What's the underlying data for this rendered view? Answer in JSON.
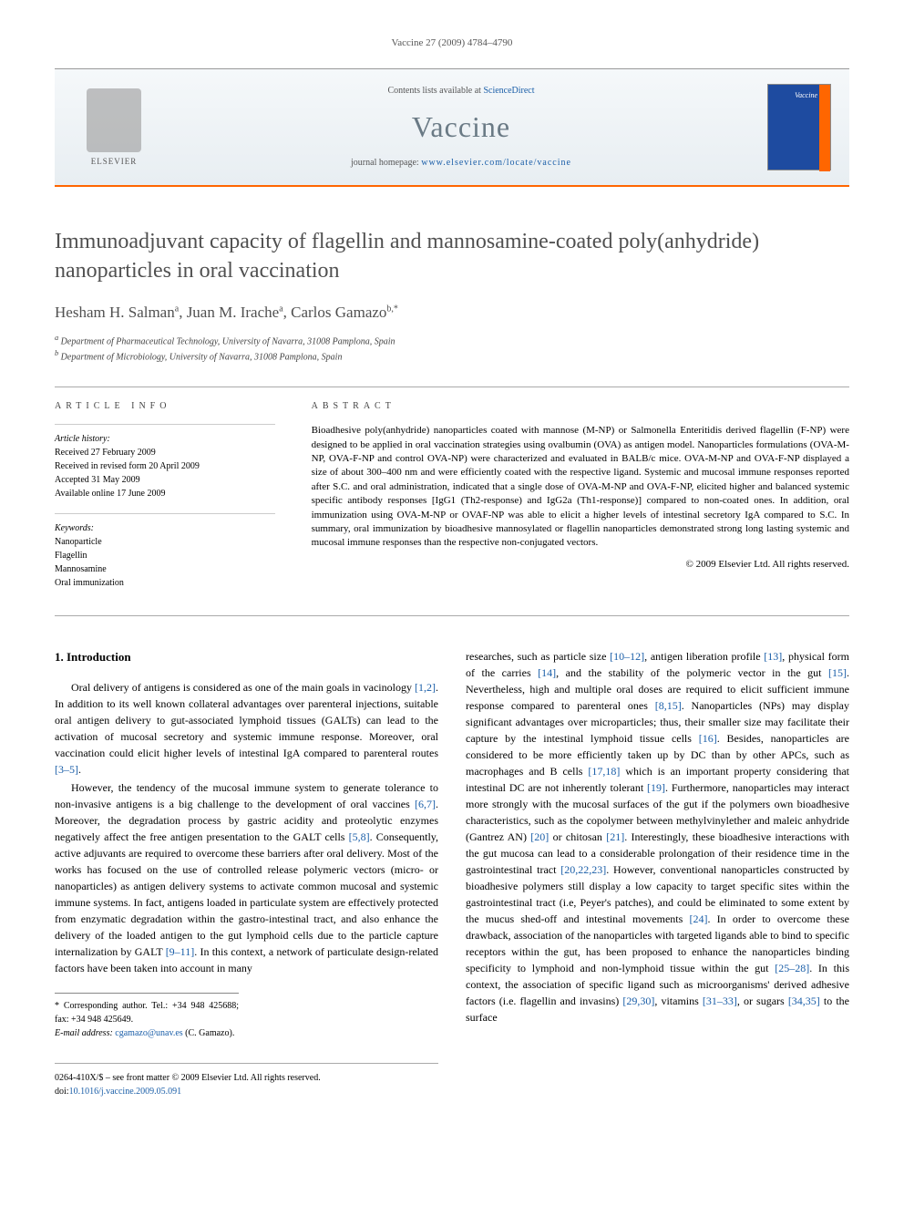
{
  "running_head": "Vaccine 27 (2009) 4784–4790",
  "header": {
    "contents_prefix": "Contents lists available at ",
    "contents_link": "ScienceDirect",
    "journal": "Vaccine",
    "homepage_prefix": "journal homepage: ",
    "homepage_url": "www.elsevier.com/locate/vaccine",
    "publisher": "ELSEVIER",
    "cover_label": "Vaccine"
  },
  "title": "Immunoadjuvant capacity of flagellin and mannosamine-coated poly(anhydride) nanoparticles in oral vaccination",
  "authors_html": "Hesham H. Salman<sup>a</sup>, Juan M. Irache<sup>a</sup>, Carlos Gamazo<sup>b,*</sup>",
  "affiliations": {
    "a": "Department of Pharmaceutical Technology, University of Navarra, 31008 Pamplona, Spain",
    "b": "Department of Microbiology, University of Navarra, 31008 Pamplona, Spain"
  },
  "info": {
    "label": "article info",
    "history_title": "Article history:",
    "history": [
      "Received 27 February 2009",
      "Received in revised form 20 April 2009",
      "Accepted 31 May 2009",
      "Available online 17 June 2009"
    ],
    "keywords_title": "Keywords:",
    "keywords": [
      "Nanoparticle",
      "Flagellin",
      "Mannosamine",
      "Oral immunization"
    ]
  },
  "abstract": {
    "label": "abstract",
    "text": "Bioadhesive poly(anhydride) nanoparticles coated with mannose (M-NP) or Salmonella Enteritidis derived flagellin (F-NP) were designed to be applied in oral vaccination strategies using ovalbumin (OVA) as antigen model. Nanoparticles formulations (OVA-M-NP, OVA-F-NP and control OVA-NP) were characterized and evaluated in BALB/c mice. OVA-M-NP and OVA-F-NP displayed a size of about 300–400 nm and were efficiently coated with the respective ligand. Systemic and mucosal immune responses reported after S.C. and oral administration, indicated that a single dose of OVA-M-NP and OVA-F-NP, elicited higher and balanced systemic specific antibody responses [IgG1 (Th2-response) and IgG2a (Th1-response)] compared to non-coated ones. In addition, oral immunization using OVA-M-NP or OVAF-NP was able to elicit a higher levels of intestinal secretory IgA compared to S.C. In summary, oral immunization by bioadhesive mannosylated or flagellin nanoparticles demonstrated strong long lasting systemic and mucosal immune responses than the respective non-conjugated vectors.",
    "copyright": "© 2009 Elsevier Ltd. All rights reserved."
  },
  "body": {
    "section_heading": "1. Introduction",
    "left_p1": "Oral delivery of antigens is considered as one of the main goals in vacinology [1,2]. In addition to its well known collateral advantages over parenteral injections, suitable oral antigen delivery to gut-associated lymphoid tissues (GALTs) can lead to the activation of mucosal secretory and systemic immune response. Moreover, oral vaccination could elicit higher levels of intestinal IgA compared to parenteral routes [3–5].",
    "left_p2": "However, the tendency of the mucosal immune system to generate tolerance to non-invasive antigens is a big challenge to the development of oral vaccines [6,7]. Moreover, the degradation process by gastric acidity and proteolytic enzymes negatively affect the free antigen presentation to the GALT cells [5,8]. Consequently, active adjuvants are required to overcome these barriers after oral delivery. Most of the works has focused on the use of controlled release polymeric vectors (micro- or nanoparticles) as antigen delivery systems to activate common mucosal and systemic immune systems. In fact, antigens loaded in particulate system are effectively protected from enzymatic degradation within the gastro-intestinal tract, and also enhance the delivery of the loaded antigen to the gut lymphoid cells due to the particle capture internalization by GALT [9–11]. In this context, a network of particulate design-related factors have been taken into account in many",
    "right_p1": "researches, such as particle size [10–12], antigen liberation profile [13], physical form of the carries [14], and the stability of the polymeric vector in the gut [15]. Nevertheless, high and multiple oral doses are required to elicit sufficient immune response compared to parenteral ones [8,15]. Nanoparticles (NPs) may display significant advantages over microparticles; thus, their smaller size may facilitate their capture by the intestinal lymphoid tissue cells [16]. Besides, nanoparticles are considered to be more efficiently taken up by DC than by other APCs, such as macrophages and B cells [17,18] which is an important property considering that intestinal DC are not inherently tolerant [19]. Furthermore, nanoparticles may interact more strongly with the mucosal surfaces of the gut if the polymers own bioadhesive characteristics, such as the copolymer between methylvinylether and maleic anhydride (Gantrez AN) [20] or chitosan [21]. Interestingly, these bioadhesive interactions with the gut mucosa can lead to a considerable prolongation of their residence time in the gastrointestinal tract [20,22,23]. However, conventional nanoparticles constructed by bioadhesive polymers still display a low capacity to target specific sites within the gastrointestinal tract (i.e, Peyer's patches), and could be eliminated to some extent by the mucus shed-off and intestinal movements [24]. In order to overcome these drawback, association of the nanoparticles with targeted ligands able to bind to specific receptors within the gut, has been proposed to enhance the nanoparticles binding specificity to lymphoid and non-lymphoid tissue within the gut [25–28]. In this context, the association of specific ligand such as microorganisms' derived adhesive factors (i.e. flagellin and invasins) [29,30], vitamins [31–33], or sugars [34,35] to the surface"
  },
  "footnote": {
    "corr": "* Corresponding author. Tel.: +34 948 425688; fax: +34 948 425649.",
    "email_label": "E-mail address: ",
    "email": "cgamazo@unav.es",
    "email_suffix": " (C. Gamazo)."
  },
  "footer": {
    "line1": "0264-410X/$ – see front matter © 2009 Elsevier Ltd. All rights reserved.",
    "doi_label": "doi:",
    "doi": "10.1016/j.vaccine.2009.05.091"
  },
  "colors": {
    "accent_orange": "#ff6600",
    "link_blue": "#1a5ea8",
    "title_grey": "#505050",
    "journal_grey": "#6a7a85",
    "cover_blue": "#1e4ba0"
  }
}
